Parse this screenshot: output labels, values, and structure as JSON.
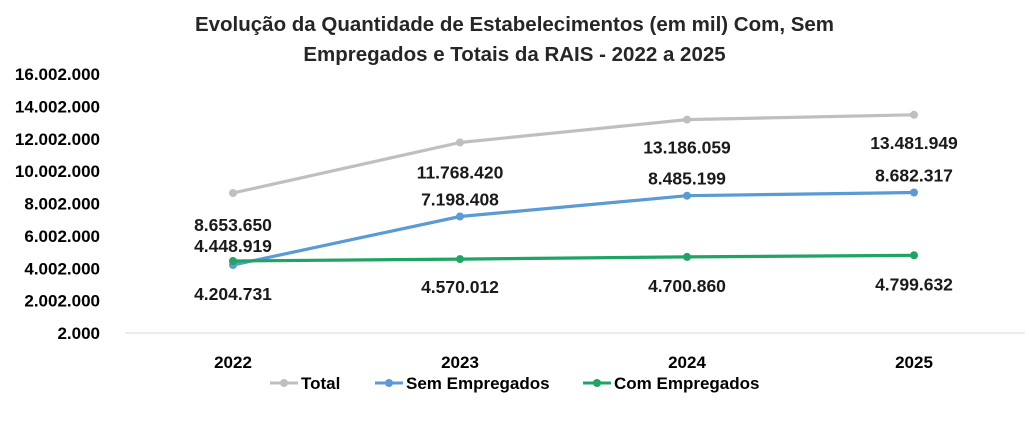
{
  "chart_data": {
    "type": "line",
    "title_line1": "Evolução da Quantidade de Estabelecimentos (em mil) Com, Sem",
    "title_line2": "Empregados e Totais da RAIS - 2022 a 2025",
    "categories": [
      "2022",
      "2023",
      "2024",
      "2025"
    ],
    "y_ticks": [
      2000,
      2002000,
      4002000,
      6002000,
      8002000,
      10002000,
      12002000,
      14002000,
      16002000
    ],
    "y_tick_labels": [
      "2.000",
      "2.002.000",
      "4.002.000",
      "6.002.000",
      "8.002.000",
      "10.002.000",
      "12.002.000",
      "14.002.000",
      "16.002.000"
    ],
    "ylim": [
      2000,
      16002000
    ],
    "grid": false,
    "legend_position": "bottom",
    "series": [
      {
        "name": "Total",
        "color": "#BFBFBF",
        "values": [
          8653650,
          11768420,
          13186059,
          13481949
        ],
        "labels": [
          "8.653.650",
          "11.768.420",
          "13.186.059",
          "13.481.949"
        ]
      },
      {
        "name": "Sem Empregados",
        "color": "#5B9BD5",
        "values": [
          4204731,
          7198408,
          8485199,
          8682317
        ],
        "labels": [
          "4.204.731",
          "7.198.408",
          "8.485.199",
          "8.682.317"
        ]
      },
      {
        "name": "Com Empregados",
        "color": "#1FA463",
        "values": [
          4448919,
          4570012,
          4700860,
          4799632
        ],
        "labels": [
          "4.448.919",
          "4.570.012",
          "4.700.860",
          "4.799.632"
        ]
      }
    ]
  }
}
